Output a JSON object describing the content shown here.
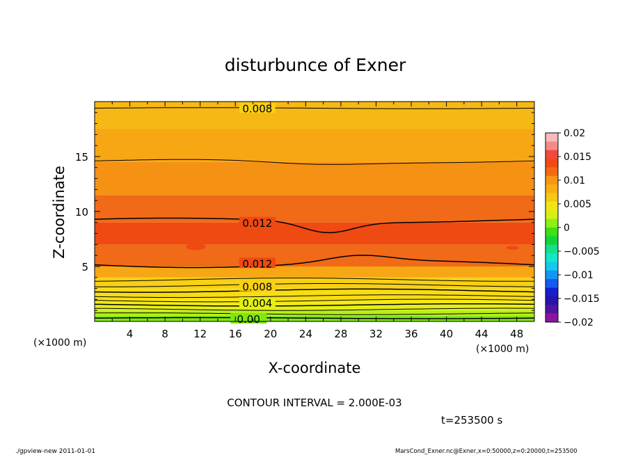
{
  "chart_data": {
    "type": "contour",
    "title": "disturbunce of Exner",
    "xlabel": "X-coordinate",
    "ylabel": "Z-coordinate",
    "x_unit": "(×1000 m)",
    "y_unit": "(×1000 m)",
    "xlim": [
      0,
      50
    ],
    "ylim": [
      0,
      20
    ],
    "x_ticks": [
      "4",
      "8",
      "12",
      "16",
      "20",
      "24",
      "28",
      "32",
      "36",
      "40",
      "44",
      "48"
    ],
    "y_ticks": [
      "5",
      "10",
      "15"
    ],
    "contour_interval_text": "CONTOUR INTERVAL = 2.000E-03",
    "time_text": "t=253500 s",
    "colorbar": {
      "tick_labels": [
        "0.02",
        "0.015",
        "0.01",
        "0.005",
        "0",
        "−0.005",
        "−0.01",
        "−0.015",
        "−0.02"
      ],
      "colors": [
        "#fbbaba",
        "#f58a8a",
        "#f24a3a",
        "#f24a14",
        "#f56a10",
        "#f89614",
        "#f7b014",
        "#f5c814",
        "#f0e614",
        "#d6f014",
        "#8ef014",
        "#3ee014",
        "#14d33a",
        "#14e08e",
        "#14e6c8",
        "#14c8f0",
        "#1496f0",
        "#145af0",
        "#1420d0",
        "#2814a8",
        "#5014a0",
        "#8c14a0"
      ]
    },
    "contour_labels": [
      "0.008",
      "0.012",
      "0.012",
      "0.008",
      "0.004",
      "0.00"
    ],
    "profile": {
      "z": [
        0,
        0.5,
        1,
        1.5,
        2,
        2.5,
        3,
        4,
        5,
        7,
        9,
        11.5,
        14.5,
        17.5,
        20
      ],
      "value": [
        0.002,
        0.003,
        0.004,
        0.005,
        0.006,
        0.007,
        0.008,
        0.01,
        0.012,
        0.0125,
        0.012,
        0.011,
        0.01,
        0.009,
        0.008
      ]
    }
  },
  "footer": {
    "left": "./gpview-new   2011-01-01",
    "right": "MarsCond_Exner.nc@Exner,x=0:50000,z=0:20000,t=253500"
  }
}
